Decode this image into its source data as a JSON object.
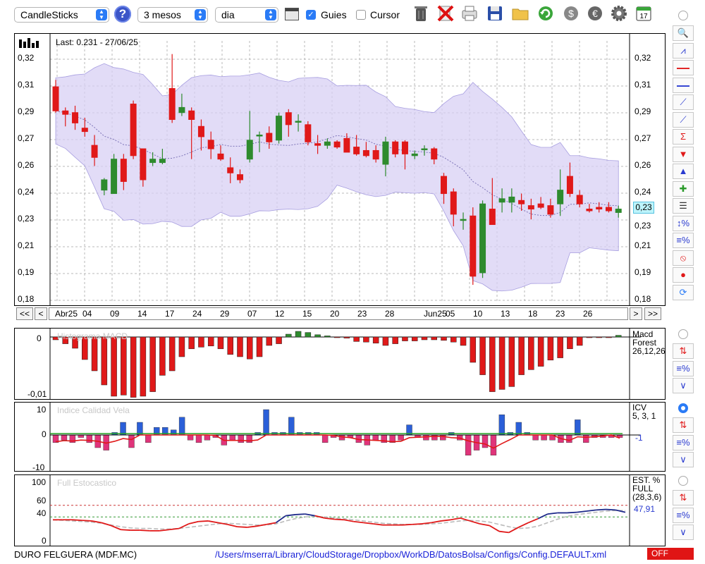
{
  "toolbar": {
    "chart_type": "CandleSticks",
    "period": "3 mesos",
    "interval": "dia",
    "guides_label": "Guies",
    "guides_checked": true,
    "cursor_label": "Cursor",
    "cursor_checked": false,
    "help_label": "?",
    "calendar_label": "17"
  },
  "main_chart": {
    "last_label": "Last: 0.231 - 27/06/25",
    "current_price": "0,23",
    "y_ticks": [
      "0,32",
      "0,31",
      "0,29",
      "0,27",
      "0,26",
      "0,24",
      "0,23",
      "0,21",
      "0,19",
      "0,18"
    ],
    "x_labels": [
      "Abr25",
      "04",
      "09",
      "14",
      "17",
      "24",
      "29",
      "07",
      "12",
      "15",
      "20",
      "23",
      "28",
      "Jun25",
      "05",
      "10",
      "13",
      "18",
      "23",
      "26"
    ],
    "nav": {
      "first": "<<",
      "prev": "<",
      "next": ">",
      "last": ">>"
    }
  },
  "chart_data": [
    {
      "type": "candlestick",
      "title": "",
      "ylim": [
        0.18,
        0.32
      ],
      "candles": [
        {
          "o": 0.304,
          "h": 0.308,
          "l": 0.289,
          "c": 0.29
        },
        {
          "o": 0.29,
          "h": 0.292,
          "l": 0.281,
          "c": 0.288
        },
        {
          "o": 0.289,
          "h": 0.293,
          "l": 0.279,
          "c": 0.283
        },
        {
          "o": 0.28,
          "h": 0.286,
          "l": 0.275,
          "c": 0.278
        },
        {
          "o": 0.27,
          "h": 0.276,
          "l": 0.258,
          "c": 0.263
        },
        {
          "o": 0.244,
          "h": 0.251,
          "l": 0.241,
          "c": 0.25
        },
        {
          "o": 0.242,
          "h": 0.265,
          "l": 0.242,
          "c": 0.262
        },
        {
          "o": 0.262,
          "h": 0.265,
          "l": 0.244,
          "c": 0.249
        },
        {
          "o": 0.294,
          "h": 0.296,
          "l": 0.262,
          "c": 0.264
        },
        {
          "o": 0.268,
          "h": 0.268,
          "l": 0.246,
          "c": 0.25
        },
        {
          "o": 0.26,
          "h": 0.266,
          "l": 0.258,
          "c": 0.262
        },
        {
          "o": 0.26,
          "h": 0.268,
          "l": 0.259,
          "c": 0.262
        },
        {
          "o": 0.303,
          "h": 0.323,
          "l": 0.283,
          "c": 0.285
        },
        {
          "o": 0.289,
          "h": 0.3,
          "l": 0.287,
          "c": 0.292
        },
        {
          "o": 0.29,
          "h": 0.292,
          "l": 0.262,
          "c": 0.285
        },
        {
          "o": 0.281,
          "h": 0.285,
          "l": 0.267,
          "c": 0.275
        },
        {
          "o": 0.273,
          "h": 0.278,
          "l": 0.262,
          "c": 0.268
        },
        {
          "o": 0.265,
          "h": 0.27,
          "l": 0.261,
          "c": 0.262
        },
        {
          "o": 0.257,
          "h": 0.263,
          "l": 0.248,
          "c": 0.254
        },
        {
          "o": 0.253,
          "h": 0.256,
          "l": 0.248,
          "c": 0.25
        },
        {
          "o": 0.262,
          "h": 0.29,
          "l": 0.26,
          "c": 0.273
        },
        {
          "o": 0.276,
          "h": 0.278,
          "l": 0.266,
          "c": 0.276
        },
        {
          "o": 0.277,
          "h": 0.281,
          "l": 0.268,
          "c": 0.272
        },
        {
          "o": 0.273,
          "h": 0.289,
          "l": 0.271,
          "c": 0.287
        },
        {
          "o": 0.289,
          "h": 0.291,
          "l": 0.275,
          "c": 0.282
        },
        {
          "o": 0.284,
          "h": 0.288,
          "l": 0.278,
          "c": 0.284
        },
        {
          "o": 0.282,
          "h": 0.284,
          "l": 0.27,
          "c": 0.272
        },
        {
          "o": 0.271,
          "h": 0.276,
          "l": 0.265,
          "c": 0.27
        },
        {
          "o": 0.27,
          "h": 0.274,
          "l": 0.268,
          "c": 0.272
        },
        {
          "o": 0.272,
          "h": 0.273,
          "l": 0.268,
          "c": 0.269
        },
        {
          "o": 0.274,
          "h": 0.277,
          "l": 0.266,
          "c": 0.266
        },
        {
          "o": 0.269,
          "h": 0.276,
          "l": 0.264,
          "c": 0.265
        },
        {
          "o": 0.267,
          "h": 0.272,
          "l": 0.263,
          "c": 0.264
        },
        {
          "o": 0.267,
          "h": 0.27,
          "l": 0.26,
          "c": 0.262
        },
        {
          "o": 0.259,
          "h": 0.275,
          "l": 0.252,
          "c": 0.272
        },
        {
          "o": 0.272,
          "h": 0.273,
          "l": 0.263,
          "c": 0.265
        },
        {
          "o": 0.272,
          "h": 0.273,
          "l": 0.256,
          "c": 0.265
        },
        {
          "o": 0.264,
          "h": 0.267,
          "l": 0.262,
          "c": 0.265
        },
        {
          "o": 0.268,
          "h": 0.27,
          "l": 0.264,
          "c": 0.268
        },
        {
          "o": 0.268,
          "h": 0.269,
          "l": 0.259,
          "c": 0.262
        },
        {
          "o": 0.252,
          "h": 0.254,
          "l": 0.236,
          "c": 0.242
        },
        {
          "o": 0.243,
          "h": 0.245,
          "l": 0.223,
          "c": 0.23
        },
        {
          "o": 0.227,
          "h": 0.231,
          "l": 0.221,
          "c": 0.227
        },
        {
          "o": 0.229,
          "h": 0.234,
          "l": 0.189,
          "c": 0.194
        },
        {
          "o": 0.196,
          "h": 0.238,
          "l": 0.193,
          "c": 0.236
        },
        {
          "o": 0.233,
          "h": 0.251,
          "l": 0.225,
          "c": 0.224
        },
        {
          "o": 0.237,
          "h": 0.245,
          "l": 0.231,
          "c": 0.239
        },
        {
          "o": 0.237,
          "h": 0.245,
          "l": 0.231,
          "c": 0.24
        },
        {
          "o": 0.238,
          "h": 0.242,
          "l": 0.232,
          "c": 0.236
        },
        {
          "o": 0.235,
          "h": 0.239,
          "l": 0.227,
          "c": 0.233
        },
        {
          "o": 0.236,
          "h": 0.24,
          "l": 0.233,
          "c": 0.234
        },
        {
          "o": 0.235,
          "h": 0.239,
          "l": 0.228,
          "c": 0.23
        },
        {
          "o": 0.236,
          "h": 0.256,
          "l": 0.229,
          "c": 0.244
        },
        {
          "o": 0.252,
          "h": 0.26,
          "l": 0.24,
          "c": 0.242
        },
        {
          "o": 0.241,
          "h": 0.244,
          "l": 0.234,
          "c": 0.236
        },
        {
          "o": 0.233,
          "h": 0.236,
          "l": 0.231,
          "c": 0.232
        },
        {
          "o": 0.234,
          "h": 0.237,
          "l": 0.231,
          "c": 0.233
        },
        {
          "o": 0.234,
          "h": 0.237,
          "l": 0.231,
          "c": 0.232
        },
        {
          "o": 0.231,
          "h": 0.235,
          "l": 0.228,
          "c": 0.233
        }
      ]
    },
    {
      "type": "bar",
      "title": "Histograma MACD",
      "legend": [
        "Macd",
        "Forest",
        "26,12,26"
      ],
      "y_ticks": [
        "0",
        "-0,01"
      ],
      "values": [
        -0.0005,
        -0.0012,
        -0.002,
        -0.004,
        -0.006,
        -0.0085,
        -0.0105,
        -0.0103,
        -0.0107,
        -0.0105,
        -0.0097,
        -0.0068,
        -0.006,
        -0.0035,
        -0.0021,
        -0.0018,
        -0.0016,
        -0.0021,
        -0.0031,
        -0.0035,
        -0.0039,
        -0.0035,
        -0.0015,
        -0.0012,
        0.0005,
        0.001,
        0.0008,
        0.0004,
        0.0002,
        -0.0001,
        -0.0002,
        -0.0008,
        -0.0009,
        -0.0011,
        -0.0015,
        -0.0012,
        -0.0007,
        -0.0007,
        -0.0005,
        -0.0005,
        -0.0006,
        -0.0009,
        -0.0015,
        -0.0045,
        -0.0067,
        -0.0097,
        -0.0093,
        -0.0088,
        -0.0067,
        -0.0058,
        -0.0052,
        -0.0041,
        -0.0037,
        -0.0021,
        -0.0015,
        -0.0001,
        -0.0001,
        -0.0001,
        0.0003
      ]
    },
    {
      "type": "bar",
      "title": "Indice Calidad Vela",
      "legend": [
        "ICV",
        "5, 3, 1"
      ],
      "value_label": "-1",
      "y_ticks": [
        "10",
        "0",
        "-10"
      ],
      "values": [
        -3,
        -2,
        -3,
        -1,
        -3,
        -5,
        -6,
        1,
        5,
        -5,
        5,
        -3,
        3,
        3,
        2,
        7,
        -2,
        -3,
        -2,
        -1,
        -4,
        -2,
        -3,
        -3,
        1,
        10,
        1,
        1,
        7,
        1,
        1,
        1,
        -3,
        -1,
        -2,
        -1,
        -3,
        -4,
        -2,
        -3,
        -3,
        -2,
        4,
        -1,
        -2,
        -2,
        -2,
        1,
        -2,
        -8,
        -6,
        -5,
        -8,
        8,
        1,
        5,
        1,
        -2,
        -2,
        -2,
        -3,
        -3,
        6,
        -3,
        -1,
        -1,
        -1,
        -1
      ]
    },
    {
      "type": "line",
      "title": "Full Estocastico",
      "legend": [
        "EST. %",
        "FULL",
        "(28,3,6)"
      ],
      "value_label": "47,91",
      "y_ticks": [
        "100",
        "60",
        "40",
        "0"
      ],
      "ylim": [
        0,
        100
      ],
      "series_k": [
        35,
        35,
        35,
        34,
        33,
        30,
        25,
        18,
        17,
        17,
        16,
        16,
        18,
        20,
        28,
        32,
        33,
        30,
        27,
        23,
        22,
        24,
        27,
        30,
        42,
        44,
        45,
        42,
        38,
        36,
        35,
        32,
        30,
        28,
        26,
        26,
        26,
        27,
        28,
        30,
        33,
        35,
        38,
        33,
        28,
        25,
        15,
        13,
        22,
        30,
        37,
        45,
        47,
        47,
        48,
        50,
        52,
        53,
        52,
        48
      ],
      "series_d": [
        35,
        34,
        33,
        32,
        31,
        29,
        26,
        23,
        21,
        20,
        20,
        19,
        19,
        20,
        22,
        24,
        26,
        28,
        29,
        28,
        27,
        26,
        26,
        28,
        33,
        37,
        40,
        41,
        40,
        38,
        37,
        35,
        33,
        31,
        29,
        28,
        27,
        27,
        27,
        28,
        29,
        31,
        33,
        34,
        33,
        31,
        27,
        23,
        20,
        21,
        24,
        30,
        36,
        41,
        44,
        46,
        48,
        50,
        51,
        51
      ]
    }
  ],
  "status": {
    "instrument": "DURO FELGUERA (MDF.MC)",
    "path": "/Users/mserra/Library/CloudStorage/Dropbox/WorkDB/DatosBolsa/Configs/Config.DEFAULT.xml",
    "off_label": "OFF"
  },
  "sidebar": {
    "main_tools": [
      "magnifier",
      "channel",
      "horizontal-line-red",
      "horizontal-line-blue",
      "fibonacci",
      "trend-line",
      "sigma",
      "arrow-down",
      "arrow-up",
      "plus-arrows",
      "grid-lines",
      "zoom-percent",
      "percent-lines",
      "no-sign",
      "record",
      "refresh"
    ],
    "panel_tools": [
      "arrows-red-green",
      "percent-lines",
      "curve"
    ]
  },
  "colors": {
    "up": "#2e8b2e",
    "down": "#e01919",
    "band": "#d8d0f4",
    "accent": "#2a7bf6"
  }
}
